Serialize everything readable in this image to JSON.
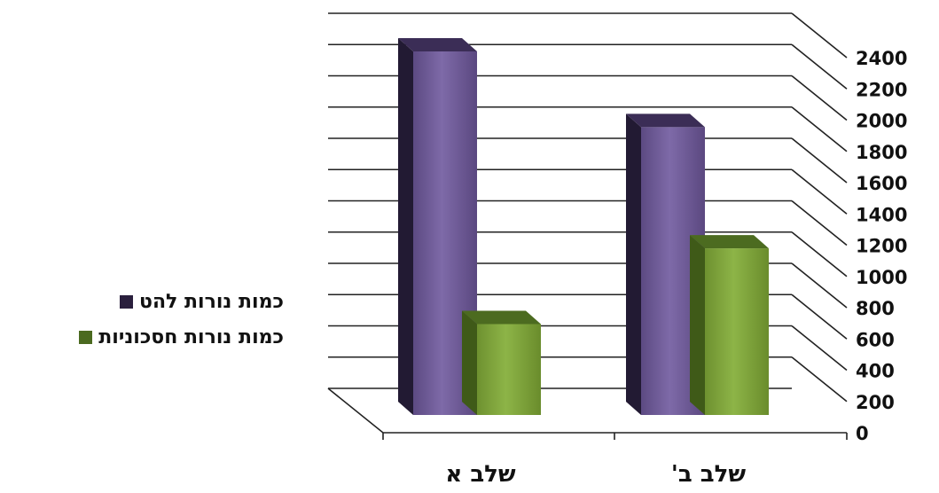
{
  "chart_data": {
    "type": "bar",
    "categories": [
      "שלב א",
      "שלב ב'"
    ],
    "series": [
      {
        "name": "כמות נורות להט",
        "values": [
          2400,
          1900
        ],
        "color": "#6d5a96"
      },
      {
        "name": "כמות נורות חסכוניות",
        "values": [
          600,
          1100
        ],
        "color": "#7fa33a"
      }
    ],
    "ylim": [
      0,
      2400
    ],
    "yticks": [
      0,
      200,
      400,
      600,
      800,
      1000,
      1200,
      1400,
      1600,
      1800,
      2000,
      2200,
      2400
    ],
    "grid": true,
    "legend_position": "left",
    "three_d": true,
    "title": "",
    "xlabel": "",
    "ylabel": ""
  }
}
